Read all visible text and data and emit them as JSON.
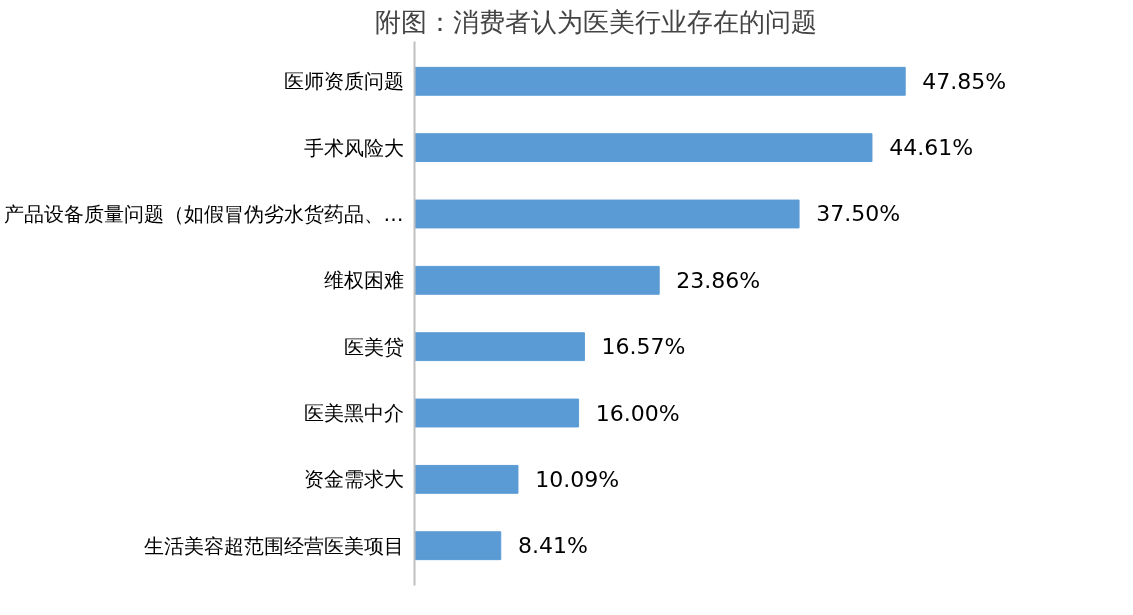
{
  "chart_data": {
    "type": "bar",
    "orientation": "horizontal",
    "title": "附图：消费者认为医美行业存在的问题",
    "categories": [
      "医师资质问题",
      "手术风险大",
      "产品设备质量问题（如假冒伪劣水货药品、…",
      "维权困难",
      "医美贷",
      "医美黑中介",
      "资金需求大",
      "生活美容超范围经营医美项目"
    ],
    "values": [
      47.85,
      44.61,
      37.5,
      23.86,
      16.57,
      16.0,
      10.09,
      8.41
    ],
    "value_labels": [
      "47.85%",
      "44.61%",
      "37.50%",
      "23.86%",
      "16.57%",
      "16.00%",
      "10.09%",
      "8.41%"
    ],
    "color": "#5b9bd5",
    "grid": false
  }
}
